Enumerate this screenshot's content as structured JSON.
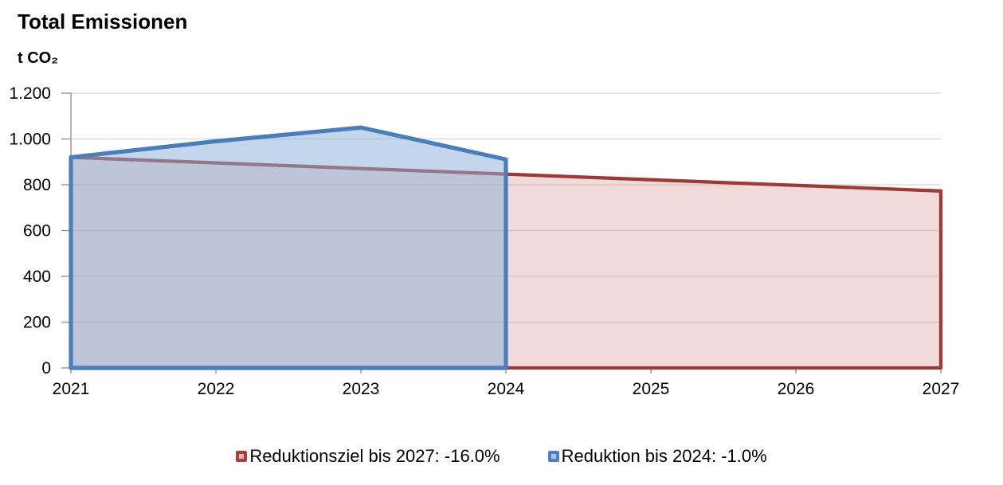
{
  "chart": {
    "title": "Total Emissionen",
    "y_unit_label": "t CO₂"
  },
  "chart_data": {
    "type": "area",
    "title": "Total Emissionen",
    "ylabel": "t CO₂",
    "xlabel": "",
    "ylim": [
      0,
      1200
    ],
    "xlim": [
      2021,
      2027
    ],
    "grid": true,
    "legend_position": "bottom",
    "yticks": [
      {
        "value": 0,
        "label": "0"
      },
      {
        "value": 200,
        "label": "200"
      },
      {
        "value": 400,
        "label": "400"
      },
      {
        "value": 600,
        "label": "600"
      },
      {
        "value": 800,
        "label": "800"
      },
      {
        "value": 1000,
        "label": "1.000"
      },
      {
        "value": 1200,
        "label": "1.200"
      }
    ],
    "xticks": [
      "2021",
      "2022",
      "2023",
      "2024",
      "2025",
      "2026",
      "2027"
    ],
    "series": [
      {
        "name": "Reduktionsziel bis 2027: -16.0%",
        "x": [
          2021,
          2022,
          2023,
          2024,
          2025,
          2026,
          2027
        ],
        "values": [
          920,
          895.5,
          871,
          846.4,
          821.9,
          797.4,
          772.8
        ],
        "line_color": "#9B3A36",
        "line_width": 4.3,
        "fill_color": "rgba(217,150,148,0.35)",
        "legend_marker": {
          "border": "#A3443E",
          "inner": "#E1B4AF"
        }
      },
      {
        "name": "Reduktion bis 2024: -1.0%",
        "x": [
          2021,
          2022,
          2023,
          2024
        ],
        "values": [
          920,
          990,
          1050,
          910.8
        ],
        "line_color": "#4A7EBB",
        "line_width": 5.2,
        "fill_color": "rgba(142,177,219,0.52)",
        "legend_marker": {
          "border": "#4E81BD",
          "inner": "#A9C5E5"
        }
      }
    ],
    "colors": {
      "gridline": "#D6D6D6",
      "axis": "#8C8C8C",
      "text": "#000000",
      "background": "#FFFFFF"
    }
  }
}
